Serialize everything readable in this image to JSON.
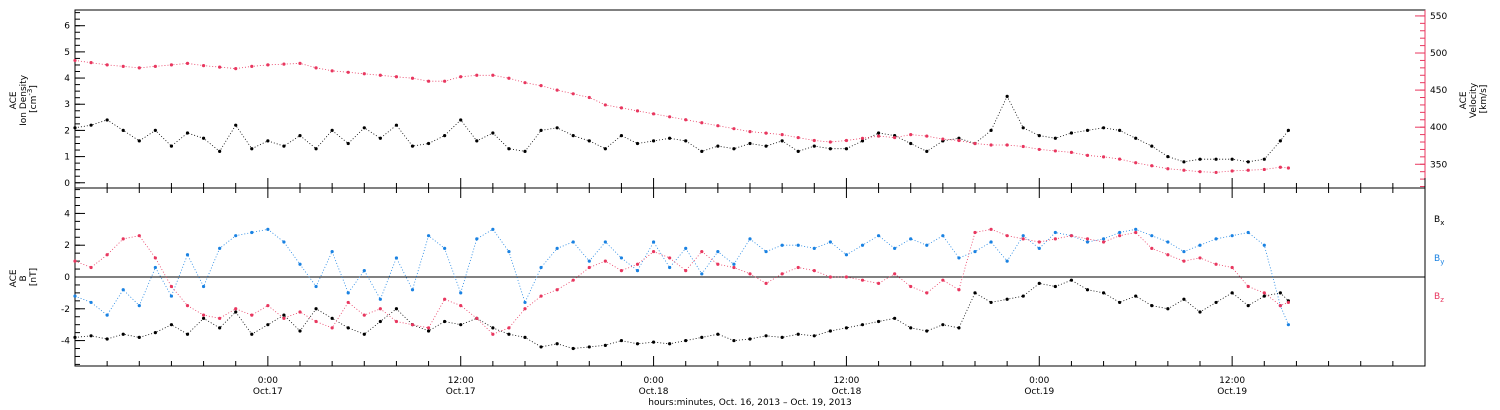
{
  "colors": {
    "density": "#000000",
    "velocity": "#e8375f",
    "bx": "#000000",
    "by": "#1a82e2",
    "bz": "#e8375f"
  },
  "time_axis": {
    "title": "hours:minutes, Oct. 16, 2013 – Oct. 19, 2013",
    "ticks": [
      {
        "hour": 24,
        "time": "0:00",
        "date": "Oct.17"
      },
      {
        "hour": 36,
        "time": "12:00",
        "date": "Oct.17"
      },
      {
        "hour": 48,
        "time": "0:00",
        "date": "Oct.18"
      },
      {
        "hour": 60,
        "time": "12:00",
        "date": "Oct.18"
      },
      {
        "hour": 72,
        "time": "0:00",
        "date": "Oct.19"
      },
      {
        "hour": 84,
        "time": "12:00",
        "date": "Oct.19"
      }
    ]
  },
  "chart_data": [
    {
      "type": "scatter",
      "x_unit": "hours since Oct. 16, 2013 0:00",
      "xlim": [
        12,
        96
      ],
      "left_axis": {
        "label_line1": "ACE",
        "label_line2": "Ion Density",
        "label_line3": "[cm",
        "label_sup": "-3",
        "label_close": "]",
        "ylim": [
          -0.2,
          6.6
        ],
        "ticks": [
          "0",
          "1",
          "2",
          "3",
          "4",
          "5",
          "6"
        ]
      },
      "right_axis": {
        "label_line1": "ACE",
        "label_line2": "Velocity",
        "label_line3": "[km/s]",
        "ylim": [
          318,
          558
        ],
        "ticks": [
          "350",
          "400",
          "450",
          "500",
          "550"
        ]
      },
      "series": [
        {
          "key": "density",
          "x": [
            12,
            13,
            14,
            15,
            16,
            17,
            18,
            19,
            20,
            21,
            22,
            23,
            24,
            25,
            26,
            27,
            28,
            29,
            30,
            31,
            32,
            33,
            34,
            35,
            36,
            37,
            38,
            39,
            40,
            41,
            42,
            43,
            44,
            45,
            46,
            47,
            48,
            49,
            50,
            51,
            52,
            53,
            54,
            55,
            56,
            57,
            58,
            59,
            60,
            61,
            62,
            63,
            64,
            65,
            66,
            67,
            68,
            69,
            70,
            71,
            72,
            73,
            74,
            75,
            76,
            77,
            78,
            79,
            80,
            81,
            82,
            83,
            84,
            85,
            86,
            87,
            87.5
          ],
          "y": [
            2.1,
            2.2,
            2.4,
            2.0,
            1.6,
            2.0,
            1.4,
            1.9,
            1.7,
            1.2,
            2.2,
            1.3,
            1.6,
            1.4,
            1.8,
            1.3,
            2.0,
            1.5,
            2.1,
            1.7,
            2.2,
            1.4,
            1.5,
            1.8,
            2.4,
            1.6,
            1.9,
            1.3,
            1.2,
            2.0,
            2.1,
            1.8,
            1.6,
            1.3,
            1.8,
            1.5,
            1.6,
            1.7,
            1.6,
            1.2,
            1.4,
            1.3,
            1.5,
            1.4,
            1.6,
            1.2,
            1.4,
            1.3,
            1.3,
            1.6,
            1.9,
            1.8,
            1.5,
            1.2,
            1.6,
            1.7,
            1.5,
            2.0,
            3.3,
            2.1,
            1.8,
            1.7,
            1.9,
            2.0,
            2.1,
            2.0,
            1.7,
            1.4,
            1.0,
            0.8,
            0.9,
            0.9,
            0.9,
            0.8,
            0.9,
            1.6,
            2.0
          ]
        },
        {
          "key": "velocity",
          "x": [
            12,
            13,
            14,
            15,
            16,
            17,
            18,
            19,
            20,
            21,
            22,
            23,
            24,
            25,
            26,
            27,
            28,
            29,
            30,
            31,
            32,
            33,
            34,
            35,
            36,
            37,
            38,
            39,
            40,
            41,
            42,
            43,
            44,
            45,
            46,
            47,
            48,
            49,
            50,
            51,
            52,
            53,
            54,
            55,
            56,
            57,
            58,
            59,
            60,
            61,
            62,
            63,
            64,
            65,
            66,
            67,
            68,
            69,
            70,
            71,
            72,
            73,
            74,
            75,
            76,
            77,
            78,
            79,
            80,
            81,
            82,
            83,
            84,
            85,
            86,
            87,
            87.5
          ],
          "y": [
            490,
            487,
            484,
            482,
            480,
            482,
            484,
            486,
            483,
            481,
            479,
            482,
            484,
            485,
            486,
            480,
            476,
            474,
            472,
            470,
            468,
            466,
            462,
            462,
            468,
            470,
            470,
            466,
            460,
            456,
            450,
            445,
            440,
            430,
            426,
            422,
            418,
            414,
            410,
            406,
            402,
            398,
            394,
            392,
            390,
            386,
            382,
            380,
            382,
            385,
            388,
            386,
            390,
            388,
            384,
            382,
            378,
            376,
            376,
            374,
            370,
            368,
            366,
            362,
            360,
            357,
            352,
            348,
            344,
            342,
            340,
            339,
            341,
            342,
            343,
            346,
            345
          ]
        }
      ]
    },
    {
      "type": "scatter",
      "x_unit": "hours since Oct. 16, 2013 0:00",
      "xlim": [
        12,
        96
      ],
      "left_axis": {
        "label_line1": "ACE",
        "label_line2": "B",
        "label_line3": "[nT]",
        "ylim": [
          -5.6,
          5.6
        ],
        "ticks": [
          "-4",
          "-2",
          "0",
          "2",
          "4"
        ]
      },
      "zero_line": true,
      "series": [
        {
          "key": "bx",
          "name": "B",
          "subscript": "x",
          "x": [
            12,
            13,
            14,
            15,
            16,
            17,
            18,
            19,
            20,
            21,
            22,
            23,
            24,
            25,
            26,
            27,
            28,
            29,
            30,
            31,
            32,
            33,
            34,
            35,
            36,
            37,
            38,
            39,
            40,
            41,
            42,
            43,
            44,
            45,
            46,
            47,
            48,
            49,
            50,
            51,
            52,
            53,
            54,
            55,
            56,
            57,
            58,
            59,
            60,
            61,
            62,
            63,
            64,
            65,
            66,
            67,
            68,
            69,
            70,
            71,
            72,
            73,
            74,
            75,
            76,
            77,
            78,
            79,
            80,
            81,
            82,
            83,
            84,
            85,
            86,
            87,
            87.5
          ],
          "y": [
            -3.8,
            -3.7,
            -3.9,
            -3.6,
            -3.8,
            -3.5,
            -3.0,
            -3.6,
            -2.6,
            -3.2,
            -2.2,
            -3.6,
            -3.0,
            -2.4,
            -3.4,
            -2.0,
            -2.6,
            -3.2,
            -3.6,
            -2.8,
            -2.0,
            -3.0,
            -3.4,
            -2.8,
            -3.0,
            -2.6,
            -3.2,
            -3.6,
            -3.8,
            -4.4,
            -4.2,
            -4.5,
            -4.4,
            -4.3,
            -4.0,
            -4.2,
            -4.1,
            -4.2,
            -4.0,
            -3.8,
            -3.6,
            -4.0,
            -3.9,
            -3.7,
            -3.8,
            -3.6,
            -3.7,
            -3.4,
            -3.2,
            -3.0,
            -2.8,
            -2.6,
            -3.2,
            -3.4,
            -3.0,
            -3.2,
            -1.0,
            -1.6,
            -1.4,
            -1.2,
            -0.4,
            -0.6,
            -0.2,
            -0.8,
            -1.0,
            -1.6,
            -1.2,
            -1.8,
            -2.0,
            -1.4,
            -2.2,
            -1.6,
            -1.0,
            -1.8,
            -1.2,
            -1.0,
            -1.5
          ]
        },
        {
          "key": "by",
          "name": "B",
          "subscript": "y",
          "x": [
            12,
            13,
            14,
            15,
            16,
            17,
            18,
            19,
            20,
            21,
            22,
            23,
            24,
            25,
            26,
            27,
            28,
            29,
            30,
            31,
            32,
            33,
            34,
            35,
            36,
            37,
            38,
            39,
            40,
            41,
            42,
            43,
            44,
            45,
            46,
            47,
            48,
            49,
            50,
            51,
            52,
            53,
            54,
            55,
            56,
            57,
            58,
            59,
            60,
            61,
            62,
            63,
            64,
            65,
            66,
            67,
            68,
            69,
            70,
            71,
            72,
            73,
            74,
            75,
            76,
            77,
            78,
            79,
            80,
            81,
            82,
            83,
            84,
            85,
            86,
            87,
            87.5
          ],
          "y": [
            -1.2,
            -1.6,
            -2.4,
            -0.8,
            -1.8,
            0.6,
            -1.2,
            1.4,
            -0.6,
            1.8,
            2.6,
            2.8,
            3.0,
            2.2,
            0.8,
            -0.6,
            1.6,
            -1.0,
            0.4,
            -1.4,
            1.2,
            -0.8,
            2.6,
            1.8,
            -1.0,
            2.4,
            3.0,
            1.6,
            -1.6,
            0.6,
            1.8,
            2.2,
            1.0,
            2.2,
            1.2,
            0.4,
            2.2,
            0.6,
            1.8,
            0.2,
            1.6,
            0.8,
            2.4,
            1.6,
            2.0,
            2.0,
            1.8,
            2.2,
            1.4,
            2.0,
            2.6,
            1.8,
            2.4,
            2.0,
            2.6,
            1.2,
            1.6,
            2.2,
            1.0,
            2.6,
            1.8,
            2.8,
            2.6,
            2.2,
            2.4,
            2.8,
            3.0,
            2.6,
            2.2,
            1.6,
            2.0,
            2.4,
            2.6,
            2.8,
            2.0,
            -1.8,
            -3.0
          ]
        },
        {
          "key": "bz",
          "name": "B",
          "subscript": "z",
          "x": [
            12,
            13,
            14,
            15,
            16,
            17,
            18,
            19,
            20,
            21,
            22,
            23,
            24,
            25,
            26,
            27,
            28,
            29,
            30,
            31,
            32,
            33,
            34,
            35,
            36,
            37,
            38,
            39,
            40,
            41,
            42,
            43,
            44,
            45,
            46,
            47,
            48,
            49,
            50,
            51,
            52,
            53,
            54,
            55,
            56,
            57,
            58,
            59,
            60,
            61,
            62,
            63,
            64,
            65,
            66,
            67,
            68,
            69,
            70,
            71,
            72,
            73,
            74,
            75,
            76,
            77,
            78,
            79,
            80,
            81,
            82,
            83,
            84,
            85,
            86,
            87,
            87.5
          ],
          "y": [
            1.0,
            0.6,
            1.4,
            2.4,
            2.6,
            1.2,
            -0.6,
            -1.8,
            -2.4,
            -2.6,
            -2.0,
            -2.4,
            -1.8,
            -2.6,
            -2.2,
            -2.8,
            -3.2,
            -1.6,
            -2.4,
            -2.0,
            -2.8,
            -3.0,
            -3.2,
            -1.4,
            -1.8,
            -2.6,
            -3.6,
            -3.2,
            -2.0,
            -1.2,
            -0.8,
            -0.2,
            0.6,
            1.0,
            0.4,
            0.8,
            1.6,
            1.2,
            0.4,
            1.6,
            0.8,
            0.6,
            0.2,
            -0.4,
            0.2,
            0.6,
            0.4,
            0.0,
            0.0,
            -0.2,
            -0.4,
            0.2,
            -0.6,
            -1.0,
            -0.2,
            -0.8,
            2.8,
            3.0,
            2.6,
            2.4,
            2.2,
            2.4,
            2.6,
            2.4,
            2.2,
            2.6,
            2.8,
            1.8,
            1.4,
            1.0,
            1.2,
            0.8,
            0.6,
            -0.6,
            -1.0,
            -1.8,
            -1.6
          ]
        }
      ]
    }
  ]
}
